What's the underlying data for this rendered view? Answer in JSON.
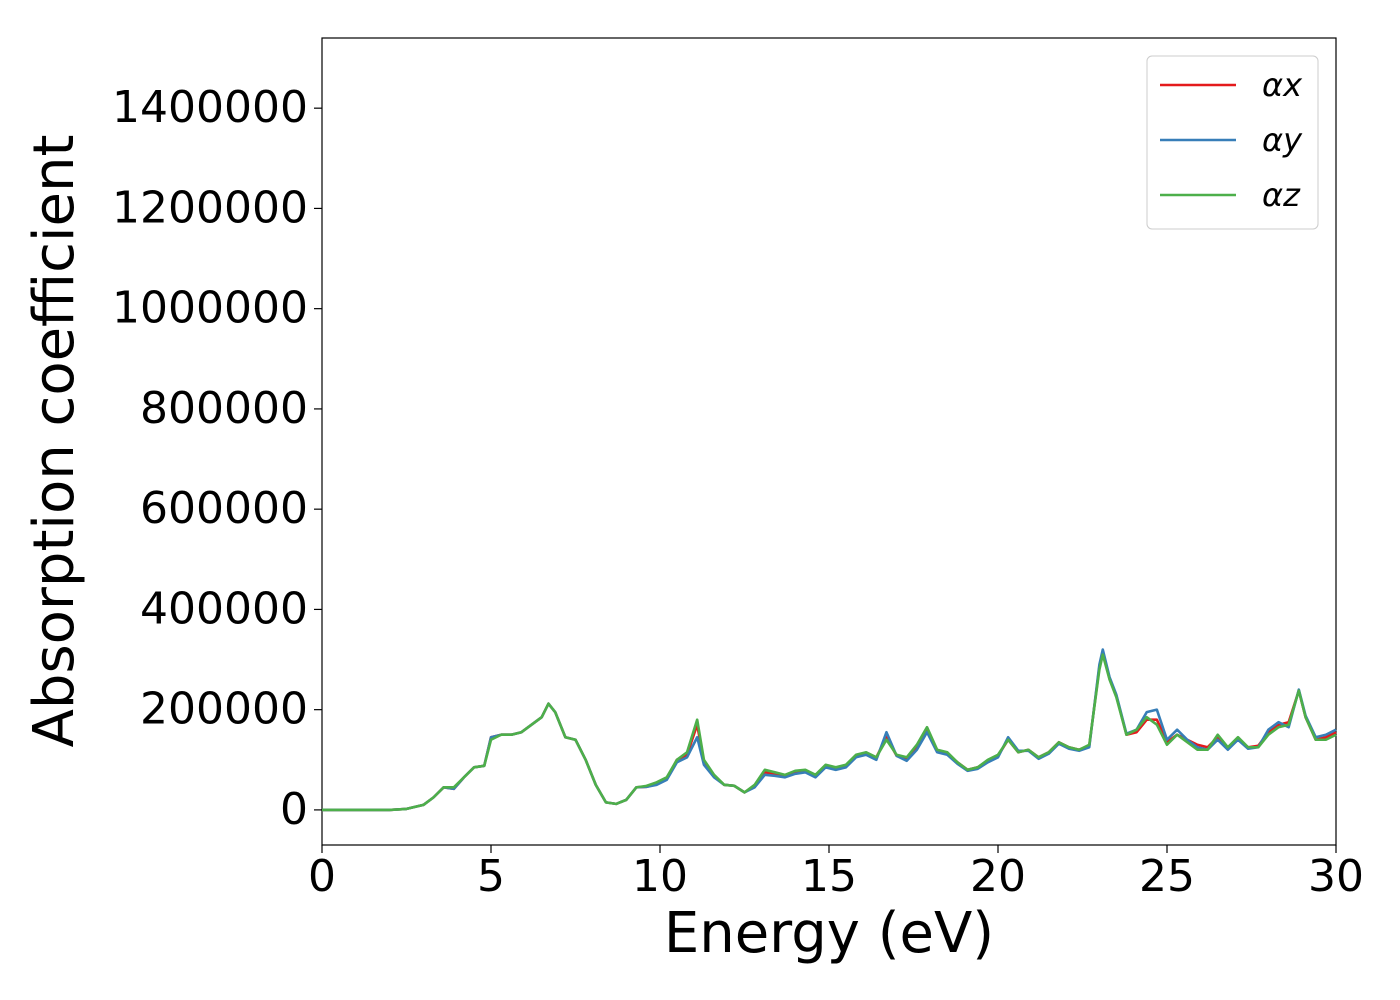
{
  "chart_data": {
    "type": "line",
    "xlabel": "Energy (eV)",
    "ylabel": "Absorption coefficient",
    "xlim": [
      0,
      30
    ],
    "xticks": [
      0,
      5,
      10,
      15,
      20,
      25,
      30
    ],
    "ylim": [
      -70000,
      1540000
    ],
    "yticks": [
      0,
      200000,
      400000,
      600000,
      800000,
      1000000,
      1200000,
      1400000
    ],
    "legend": "upper right",
    "x": [
      0,
      1,
      2,
      2.5,
      3,
      3.3,
      3.6,
      3.9,
      4.2,
      4.5,
      4.8,
      5,
      5.3,
      5.6,
      5.9,
      6.2,
      6.5,
      6.7,
      6.9,
      7.2,
      7.5,
      7.8,
      8.1,
      8.4,
      8.7,
      9,
      9.3,
      9.6,
      9.9,
      10.2,
      10.5,
      10.8,
      11.1,
      11.3,
      11.6,
      11.9,
      12.2,
      12.5,
      12.8,
      13.1,
      13.4,
      13.7,
      14,
      14.3,
      14.6,
      14.9,
      15.2,
      15.5,
      15.8,
      16.1,
      16.4,
      16.7,
      17,
      17.3,
      17.6,
      17.9,
      18.2,
      18.5,
      18.8,
      19.1,
      19.4,
      19.7,
      20,
      20.3,
      20.6,
      20.9,
      21.2,
      21.5,
      21.8,
      22.1,
      22.4,
      22.7,
      23,
      23.1,
      23.3,
      23.5,
      23.8,
      24.1,
      24.4,
      24.7,
      25,
      25.3,
      25.6,
      25.9,
      26.2,
      26.5,
      26.8,
      27.1,
      27.4,
      27.7,
      28,
      28.3,
      28.6,
      28.9,
      29.1,
      29.4,
      29.7,
      30
    ],
    "series": [
      {
        "name": "αx",
        "color": "#e41a1c",
        "values": [
          0,
          0,
          0,
          2000,
          10000,
          25000,
          45000,
          42000,
          65000,
          85000,
          88000,
          145000,
          150000,
          150000,
          155000,
          170000,
          185000,
          212000,
          195000,
          145000,
          140000,
          100000,
          50000,
          15000,
          12000,
          20000,
          45000,
          46000,
          52000,
          62000,
          100000,
          110000,
          170000,
          95000,
          68000,
          50000,
          48000,
          35000,
          48000,
          75000,
          72000,
          68000,
          75000,
          78000,
          68000,
          88000,
          82000,
          88000,
          108000,
          112000,
          105000,
          145000,
          108000,
          100000,
          125000,
          160000,
          118000,
          112000,
          95000,
          80000,
          85000,
          98000,
          108000,
          140000,
          115000,
          120000,
          105000,
          115000,
          135000,
          125000,
          120000,
          128000,
          285000,
          315000,
          262000,
          228000,
          150000,
          155000,
          180000,
          180000,
          135000,
          150000,
          140000,
          130000,
          125000,
          145000,
          125000,
          140000,
          125000,
          128000,
          155000,
          170000,
          175000,
          238000,
          185000,
          140000,
          145000,
          155000
        ]
      },
      {
        "name": "αy",
        "color": "#377eb8",
        "values": [
          0,
          0,
          0,
          2000,
          10000,
          25000,
          45000,
          42000,
          65000,
          85000,
          88000,
          145000,
          150000,
          150000,
          155000,
          170000,
          185000,
          212000,
          195000,
          145000,
          140000,
          100000,
          50000,
          15000,
          12000,
          20000,
          45000,
          46000,
          50000,
          60000,
          95000,
          105000,
          145000,
          90000,
          65000,
          50000,
          48000,
          35000,
          45000,
          70000,
          68000,
          65000,
          72000,
          75000,
          65000,
          85000,
          80000,
          85000,
          105000,
          110000,
          100000,
          155000,
          108000,
          98000,
          120000,
          155000,
          115000,
          110000,
          92000,
          78000,
          82000,
          95000,
          105000,
          145000,
          118000,
          118000,
          102000,
          112000,
          132000,
          122000,
          118000,
          125000,
          290000,
          320000,
          265000,
          230000,
          152000,
          160000,
          195000,
          200000,
          140000,
          160000,
          140000,
          125000,
          120000,
          140000,
          120000,
          140000,
          122000,
          125000,
          160000,
          175000,
          165000,
          240000,
          188000,
          145000,
          150000,
          160000
        ]
      },
      {
        "name": "αz",
        "color": "#4daf4a",
        "values": [
          0,
          0,
          0,
          2000,
          10000,
          25000,
          45000,
          45000,
          65000,
          85000,
          88000,
          140000,
          150000,
          150000,
          155000,
          170000,
          185000,
          212000,
          195000,
          145000,
          140000,
          100000,
          50000,
          15000,
          12000,
          20000,
          45000,
          48000,
          55000,
          65000,
          100000,
          115000,
          180000,
          100000,
          70000,
          50000,
          48000,
          35000,
          50000,
          80000,
          75000,
          70000,
          78000,
          80000,
          70000,
          90000,
          85000,
          90000,
          110000,
          115000,
          105000,
          140000,
          110000,
          105000,
          130000,
          165000,
          120000,
          115000,
          95000,
          80000,
          85000,
          100000,
          110000,
          140000,
          115000,
          120000,
          105000,
          115000,
          135000,
          125000,
          120000,
          130000,
          280000,
          310000,
          260000,
          225000,
          150000,
          160000,
          185000,
          170000,
          130000,
          150000,
          135000,
          120000,
          120000,
          150000,
          125000,
          145000,
          125000,
          125000,
          150000,
          165000,
          170000,
          238000,
          185000,
          140000,
          140000,
          150000
        ]
      }
    ]
  }
}
